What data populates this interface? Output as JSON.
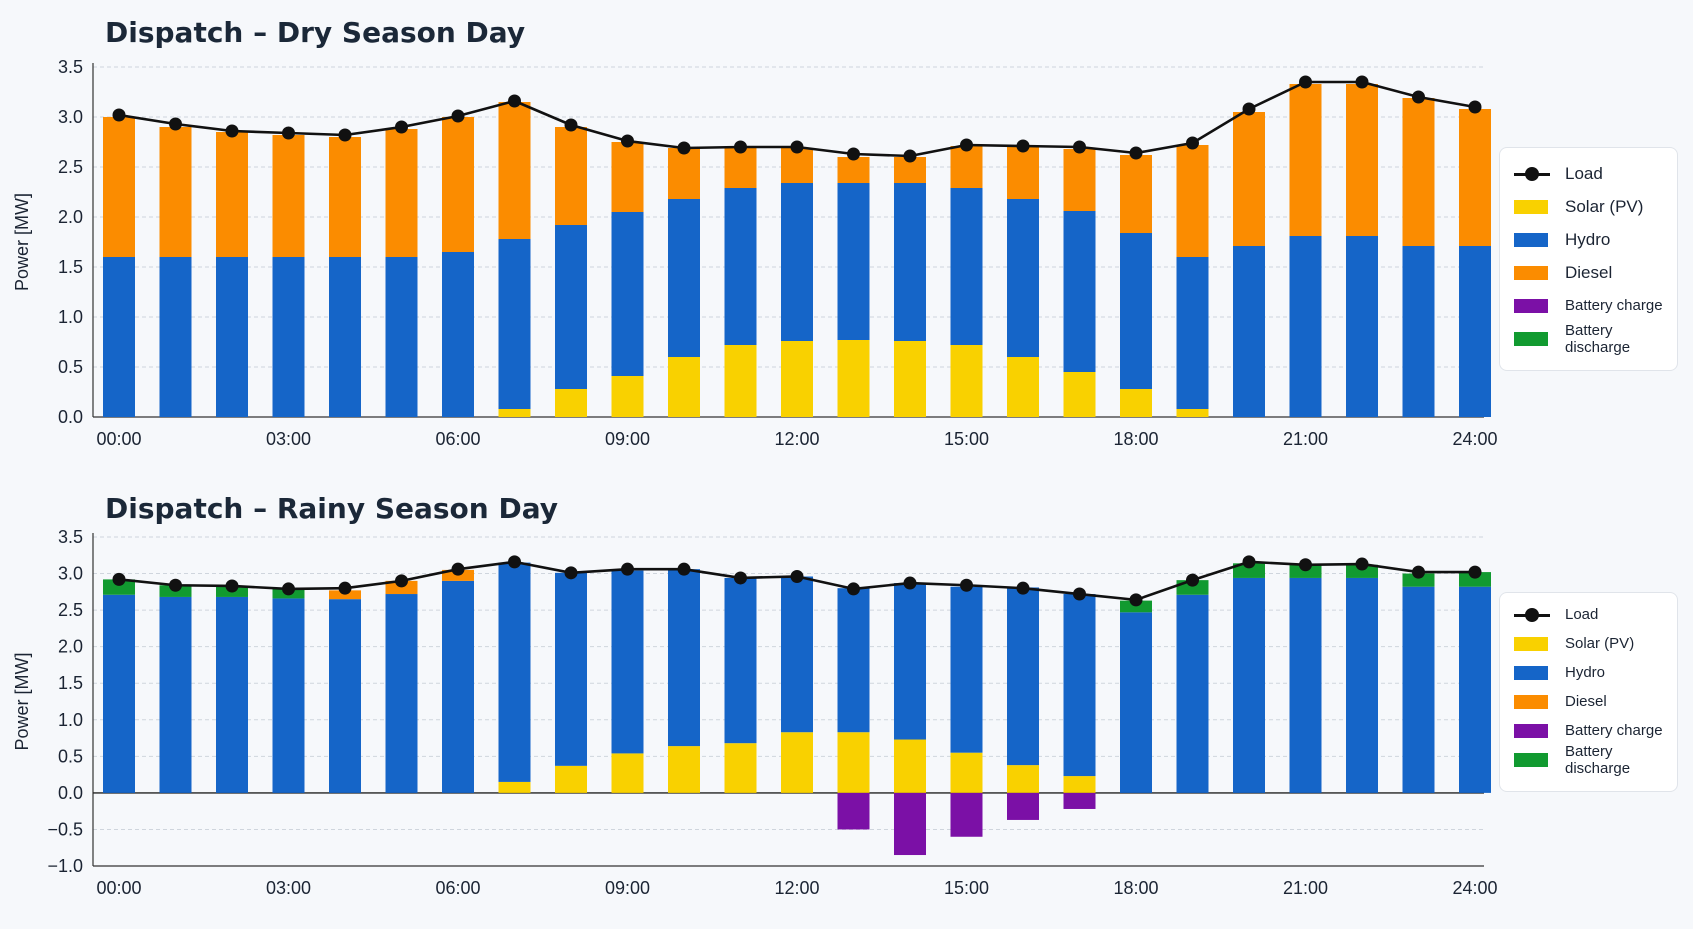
{
  "colors": {
    "load": "#111111",
    "solar": "#f9d100",
    "hydro": "#1565c8",
    "diesel": "#fb8c00",
    "battery_charge": "#7b10a6",
    "battery_discharge": "#119a30"
  },
  "legend": {
    "load": "Load",
    "solar": "Solar (PV)",
    "hydro": "Hydro",
    "diesel": "Diesel",
    "battery_charge": "Battery charge",
    "battery_discharge": "Battery discharge"
  },
  "chart_data": [
    {
      "type": "bar",
      "stacked": true,
      "title": "Dispatch – Dry Season Day",
      "ylabel": "Power [MW]",
      "xlabel": "",
      "ylim": [
        0,
        3.5
      ],
      "yticks": [
        "0.0",
        "0.5",
        "1.0",
        "1.5",
        "2.0",
        "2.5",
        "3.0",
        "3.5"
      ],
      "xtick_labels": [
        "00:00",
        "03:00",
        "06:00",
        "09:00",
        "12:00",
        "15:00",
        "18:00",
        "21:00",
        "24:00"
      ],
      "grid": true,
      "legend_position": "right",
      "x": [
        "00:00",
        "01:00",
        "02:00",
        "03:00",
        "04:00",
        "05:00",
        "06:00",
        "07:00",
        "08:00",
        "09:00",
        "10:00",
        "11:00",
        "12:00",
        "13:00",
        "14:00",
        "15:00",
        "16:00",
        "17:00",
        "18:00",
        "19:00",
        "20:00",
        "21:00",
        "22:00",
        "23:00",
        "24:00"
      ],
      "series": [
        {
          "name": "Solar (PV)",
          "key": "solar",
          "values": [
            0,
            0,
            0,
            0,
            0,
            0,
            0,
            0.08,
            0.28,
            0.41,
            0.6,
            0.72,
            0.76,
            0.77,
            0.76,
            0.72,
            0.6,
            0.45,
            0.28,
            0.08,
            0,
            0,
            0,
            0,
            0
          ]
        },
        {
          "name": "Hydro",
          "key": "hydro",
          "values": [
            1.6,
            1.6,
            1.6,
            1.6,
            1.6,
            1.6,
            1.65,
            1.7,
            1.64,
            1.64,
            1.58,
            1.57,
            1.58,
            1.57,
            1.58,
            1.57,
            1.58,
            1.61,
            1.56,
            1.52,
            1.71,
            1.81,
            1.81,
            1.71,
            1.71
          ]
        },
        {
          "name": "Diesel",
          "key": "diesel",
          "values": [
            1.4,
            1.3,
            1.25,
            1.22,
            1.2,
            1.28,
            1.35,
            1.37,
            0.98,
            0.7,
            0.51,
            0.41,
            0.35,
            0.26,
            0.26,
            0.42,
            0.52,
            0.62,
            0.78,
            1.12,
            1.34,
            1.52,
            1.52,
            1.48,
            1.37
          ]
        },
        {
          "name": "Battery charge",
          "key": "battery_charge",
          "values": [
            0,
            0,
            0,
            0,
            0,
            0,
            0,
            0,
            0,
            0,
            0,
            0,
            0,
            0,
            0,
            0,
            0,
            0,
            0,
            0,
            0,
            0,
            0,
            0,
            0
          ]
        },
        {
          "name": "Battery discharge",
          "key": "battery_discharge",
          "values": [
            0,
            0,
            0,
            0,
            0,
            0,
            0,
            0,
            0,
            0,
            0,
            0,
            0,
            0,
            0,
            0,
            0,
            0,
            0,
            0,
            0,
            0,
            0,
            0,
            0
          ]
        },
        {
          "name": "Load",
          "key": "load",
          "type": "line",
          "values": [
            3.02,
            2.93,
            2.86,
            2.84,
            2.82,
            2.9,
            3.01,
            3.16,
            2.92,
            2.76,
            2.69,
            2.7,
            2.7,
            2.63,
            2.61,
            2.72,
            2.71,
            2.7,
            2.64,
            2.74,
            3.08,
            3.35,
            3.35,
            3.2,
            3.1
          ]
        }
      ]
    },
    {
      "type": "bar",
      "stacked": true,
      "title": "Dispatch – Rainy Season Day",
      "ylabel": "Power [MW]",
      "xlabel": "",
      "ylim": [
        -1.0,
        3.5
      ],
      "yticks": [
        "−1.0",
        "−0.5",
        "0.0",
        "0.5",
        "1.0",
        "1.5",
        "2.0",
        "2.5",
        "3.0",
        "3.5"
      ],
      "xtick_labels": [
        "00:00",
        "03:00",
        "06:00",
        "09:00",
        "12:00",
        "15:00",
        "18:00",
        "21:00",
        "24:00"
      ],
      "grid": true,
      "legend_position": "right",
      "x": [
        "00:00",
        "01:00",
        "02:00",
        "03:00",
        "04:00",
        "05:00",
        "06:00",
        "07:00",
        "08:00",
        "09:00",
        "10:00",
        "11:00",
        "12:00",
        "13:00",
        "14:00",
        "15:00",
        "16:00",
        "17:00",
        "18:00",
        "19:00",
        "20:00",
        "21:00",
        "22:00",
        "23:00",
        "24:00"
      ],
      "series": [
        {
          "name": "Solar (PV)",
          "key": "solar",
          "values": [
            0,
            0,
            0,
            0,
            0,
            0,
            0,
            0.15,
            0.37,
            0.54,
            0.64,
            0.68,
            0.83,
            0.83,
            0.73,
            0.55,
            0.38,
            0.23,
            0,
            0,
            0,
            0,
            0,
            0,
            0
          ]
        },
        {
          "name": "Hydro",
          "key": "hydro",
          "values": [
            2.71,
            2.68,
            2.68,
            2.66,
            2.65,
            2.72,
            2.9,
            3.0,
            2.64,
            2.5,
            2.42,
            2.26,
            2.13,
            1.97,
            2.14,
            2.27,
            2.43,
            2.49,
            2.47,
            2.71,
            2.94,
            2.94,
            2.94,
            2.82,
            2.82
          ]
        },
        {
          "name": "Diesel",
          "key": "diesel",
          "values": [
            0,
            0,
            0,
            0,
            0.12,
            0.18,
            0.15,
            0,
            0,
            0,
            0,
            0,
            0,
            0,
            0,
            0,
            0,
            0,
            0,
            0,
            0,
            0,
            0,
            0,
            0
          ]
        },
        {
          "name": "Battery charge",
          "key": "battery_charge",
          "values": [
            0,
            0,
            0,
            0,
            0,
            0,
            0,
            0,
            0,
            0,
            0,
            0,
            0,
            -0.5,
            -0.85,
            -0.6,
            -0.37,
            -0.22,
            0,
            0,
            0,
            0,
            0,
            0,
            0
          ]
        },
        {
          "name": "Battery discharge",
          "key": "battery_discharge",
          "values": [
            0.21,
            0.16,
            0.15,
            0.13,
            0,
            0,
            0,
            0,
            0,
            0,
            0,
            0,
            0,
            0,
            0,
            0,
            0,
            0,
            0.16,
            0.2,
            0.2,
            0.18,
            0.18,
            0.18,
            0.2
          ]
        },
        {
          "name": "Load",
          "key": "load",
          "type": "line",
          "values": [
            2.92,
            2.84,
            2.83,
            2.79,
            2.8,
            2.9,
            3.06,
            3.16,
            3.01,
            3.06,
            3.06,
            2.94,
            2.96,
            2.79,
            2.87,
            2.84,
            2.8,
            2.72,
            2.64,
            2.91,
            3.16,
            3.12,
            3.13,
            3.02,
            3.02
          ]
        }
      ]
    }
  ]
}
